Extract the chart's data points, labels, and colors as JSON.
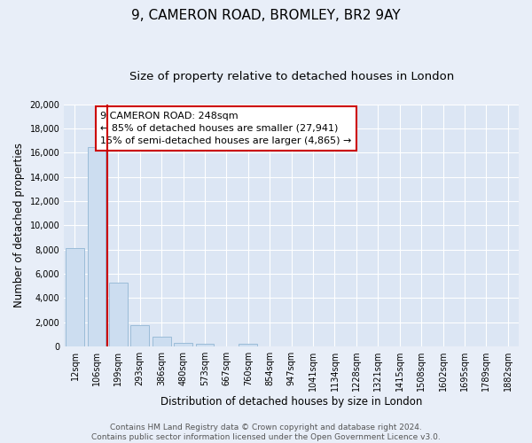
{
  "title": "9, CAMERON ROAD, BROMLEY, BR2 9AY",
  "subtitle": "Size of property relative to detached houses in London",
  "xlabel": "Distribution of detached houses by size in London",
  "ylabel": "Number of detached properties",
  "bar_labels": [
    "12sqm",
    "106sqm",
    "199sqm",
    "293sqm",
    "386sqm",
    "480sqm",
    "573sqm",
    "667sqm",
    "760sqm",
    "854sqm",
    "947sqm",
    "1041sqm",
    "1134sqm",
    "1228sqm",
    "1321sqm",
    "1415sqm",
    "1508sqm",
    "1602sqm",
    "1695sqm",
    "1789sqm",
    "1882sqm"
  ],
  "bar_values": [
    8100,
    16500,
    5300,
    1750,
    800,
    280,
    200,
    0,
    200,
    0,
    0,
    0,
    0,
    0,
    0,
    0,
    0,
    0,
    0,
    0,
    0
  ],
  "bar_color": "#ccddf0",
  "bar_edge_color": "#9bbcd8",
  "vline_color": "#cc0000",
  "ylim": [
    0,
    20000
  ],
  "yticks": [
    0,
    2000,
    4000,
    6000,
    8000,
    10000,
    12000,
    14000,
    16000,
    18000,
    20000
  ],
  "annotation_title": "9 CAMERON ROAD: 248sqm",
  "annotation_line1": "← 85% of detached houses are smaller (27,941)",
  "annotation_line2": "15% of semi-detached houses are larger (4,865) →",
  "annotation_box_color": "#ffffff",
  "annotation_box_edge": "#cc0000",
  "footer_line1": "Contains HM Land Registry data © Crown copyright and database right 2024.",
  "footer_line2": "Contains public sector information licensed under the Open Government Licence v3.0.",
  "background_color": "#e8eef8",
  "plot_bg_color": "#dce6f4",
  "title_fontsize": 11,
  "subtitle_fontsize": 9.5,
  "axis_label_fontsize": 8.5,
  "tick_fontsize": 7,
  "footer_fontsize": 6.5
}
